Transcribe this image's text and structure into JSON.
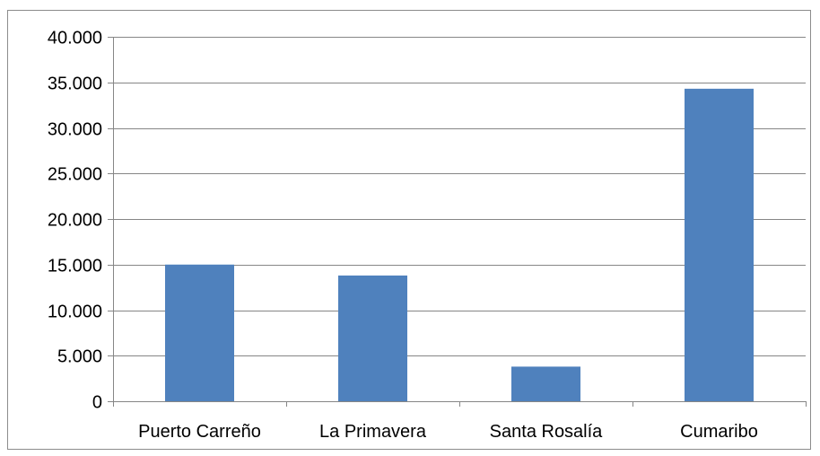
{
  "chart_data": {
    "type": "bar",
    "categories": [
      "Puerto Carreño",
      "La Primavera",
      "Santa Rosalía",
      "Cumaribo"
    ],
    "values": [
      15000,
      13800,
      3800,
      34300
    ],
    "ylim": [
      0,
      40000
    ],
    "yticks": [
      0,
      5000,
      10000,
      15000,
      20000,
      25000,
      30000,
      35000,
      40000
    ],
    "ytick_labels": [
      "0",
      "5.000",
      "10.000",
      "15.000",
      "20.000",
      "25.000",
      "30.000",
      "35.000",
      "40.000"
    ],
    "grid": true,
    "legend": "none",
    "bar_color": "#4f81bd",
    "grid_color": "#868686"
  }
}
